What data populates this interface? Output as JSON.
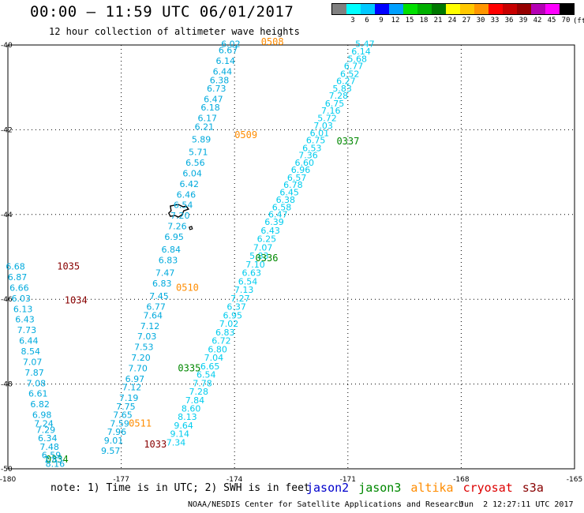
{
  "header": {
    "title": "00:00 – 11:59 UTC 06/01/2017",
    "subtitle": "12 hour collection of altimeter wave heights"
  },
  "color_legend": {
    "unit": "(ft)",
    "boxes": [
      {
        "label": "",
        "color": "#808080"
      },
      {
        "label": "3",
        "color": "#00ffff"
      },
      {
        "label": "6",
        "color": "#00c8ff"
      },
      {
        "label": "9",
        "color": "#0000ff"
      },
      {
        "label": "12",
        "color": "#00a0ff"
      },
      {
        "label": "15",
        "color": "#00e000"
      },
      {
        "label": "18",
        "color": "#00b000"
      },
      {
        "label": "21",
        "color": "#007800"
      },
      {
        "label": "24",
        "color": "#ffff00"
      },
      {
        "label": "27",
        "color": "#ffc800"
      },
      {
        "label": "30",
        "color": "#ff9600"
      },
      {
        "label": "33",
        "color": "#ff0000"
      },
      {
        "label": "36",
        "color": "#c80000"
      },
      {
        "label": "39",
        "color": "#960000"
      },
      {
        "label": "42",
        "color": "#b400b4"
      },
      {
        "label": "45",
        "color": "#ff00ff"
      },
      {
        "label": "70",
        "color": "#000000"
      }
    ]
  },
  "footer": {
    "note": "note: 1) Time is in UTC; 2) SWH is in feet",
    "missions": [
      {
        "name": "jason2",
        "color": "#0000cc"
      },
      {
        "name": "jason3",
        "color": "#008800"
      },
      {
        "name": "altika",
        "color": "#ff8c00"
      },
      {
        "name": "cryosat",
        "color": "#dd0000"
      },
      {
        "name": "s3a",
        "color": "#880000"
      }
    ],
    "credit": "NOAA/NESDIS Center for Satellite Applications and Research",
    "generated": "Jun  2 12:27:11 UTC 2017"
  },
  "chart_data": {
    "type": "scatter",
    "title": "00:00 – 11:59 UTC 06/01/2017",
    "subtitle": "12 hour collection of altimeter wave heights",
    "xlim": [
      -180,
      -165
    ],
    "ylim": [
      -50,
      -40
    ],
    "x_ticks": [
      -180,
      -177,
      -174,
      -171,
      -168,
      -165
    ],
    "y_ticks": [
      -40,
      -42,
      -44,
      -46,
      -48,
      -50
    ],
    "grid": "dotted",
    "value_color": "#00aadd",
    "series": [
      {
        "name": "altika",
        "label_color": "#ff8c00",
        "value_color": "#00aadd",
        "points": [
          {
            "lon": -174.1,
            "lat": -40.05,
            "swh": 6.02
          },
          {
            "lon": -174.17,
            "lat": -40.2,
            "swh": 6.67
          },
          {
            "lon": -174.24,
            "lat": -40.45,
            "swh": 6.14
          },
          {
            "lon": -174.32,
            "lat": -40.7,
            "swh": 6.44
          },
          {
            "lon": -174.4,
            "lat": -40.9,
            "swh": 6.38
          },
          {
            "lon": -174.48,
            "lat": -41.1,
            "swh": 6.73
          },
          {
            "lon": -174.56,
            "lat": -41.35,
            "swh": 6.47
          },
          {
            "lon": -174.64,
            "lat": -41.55,
            "swh": 6.18
          },
          {
            "lon": -174.72,
            "lat": -41.8,
            "swh": 6.17
          },
          {
            "lon": -174.8,
            "lat": -42.0,
            "swh": 6.21
          },
          {
            "lon": -174.88,
            "lat": -42.3,
            "swh": 5.89
          },
          {
            "lon": -174.96,
            "lat": -42.6,
            "swh": 5.71
          },
          {
            "lon": -175.04,
            "lat": -42.85,
            "swh": 6.56
          },
          {
            "lon": -175.12,
            "lat": -43.1,
            "swh": 6.04
          },
          {
            "lon": -175.2,
            "lat": -43.35,
            "swh": 6.42
          },
          {
            "lon": -175.28,
            "lat": -43.6,
            "swh": 6.46
          },
          {
            "lon": -175.36,
            "lat": -43.85,
            "swh": 6.54
          },
          {
            "lon": -175.44,
            "lat": -44.1,
            "swh": 7.2
          },
          {
            "lon": -175.52,
            "lat": -44.35,
            "swh": 7.26
          },
          {
            "lon": -175.6,
            "lat": -44.6,
            "swh": 6.95
          },
          {
            "lon": -175.68,
            "lat": -44.9,
            "swh": 6.84
          },
          {
            "lon": -175.76,
            "lat": -45.15,
            "swh": 6.83
          },
          {
            "lon": -175.84,
            "lat": -45.45,
            "swh": 7.47
          },
          {
            "lon": -175.92,
            "lat": -45.7,
            "swh": 6.83
          },
          {
            "lon": -176.0,
            "lat": -46.0,
            "swh": 7.45
          },
          {
            "lon": -176.08,
            "lat": -46.25,
            "swh": 6.77
          },
          {
            "lon": -176.16,
            "lat": -46.45,
            "swh": 7.64
          },
          {
            "lon": -176.24,
            "lat": -46.7,
            "swh": 7.12
          },
          {
            "lon": -176.32,
            "lat": -46.95,
            "swh": 7.03
          },
          {
            "lon": -176.4,
            "lat": -47.2,
            "swh": 7.53
          },
          {
            "lon": -176.48,
            "lat": -47.45,
            "swh": 7.2
          },
          {
            "lon": -176.56,
            "lat": -47.7,
            "swh": 7.7
          },
          {
            "lon": -176.64,
            "lat": -47.95,
            "swh": 6.97
          },
          {
            "lon": -176.72,
            "lat": -48.15,
            "swh": 7.12
          },
          {
            "lon": -176.8,
            "lat": -48.4,
            "swh": 7.19
          },
          {
            "lon": -176.88,
            "lat": -48.6,
            "swh": 7.75
          },
          {
            "lon": -176.96,
            "lat": -48.8,
            "swh": 7.65
          },
          {
            "lon": -177.04,
            "lat": -49.0,
            "swh": 7.59
          },
          {
            "lon": -177.12,
            "lat": -49.2,
            "swh": 7.96
          },
          {
            "lon": -177.2,
            "lat": -49.4,
            "swh": 9.01
          },
          {
            "lon": -177.28,
            "lat": -49.65,
            "swh": 9.57
          }
        ],
        "time_labels": [
          {
            "text": "0508",
            "lon": -173.3,
            "lat": -40.0
          },
          {
            "text": "0509",
            "lon": -174.0,
            "lat": -42.2
          },
          {
            "text": "0510",
            "lon": -175.55,
            "lat": -45.8
          },
          {
            "text": "0511",
            "lon": -176.8,
            "lat": -49.0
          }
        ]
      },
      {
        "name": "jason3",
        "label_color": "#008800",
        "value_color": "#00ccee",
        "points": [
          {
            "lon": -170.55,
            "lat": -40.05,
            "swh": 5.47
          },
          {
            "lon": -170.65,
            "lat": -40.22,
            "swh": 6.14
          },
          {
            "lon": -170.75,
            "lat": -40.4,
            "swh": 5.68
          },
          {
            "lon": -170.85,
            "lat": -40.57,
            "swh": 6.77
          },
          {
            "lon": -170.95,
            "lat": -40.75,
            "swh": 6.52
          },
          {
            "lon": -171.05,
            "lat": -40.92,
            "swh": 6.27
          },
          {
            "lon": -171.15,
            "lat": -41.1,
            "swh": 5.83
          },
          {
            "lon": -171.25,
            "lat": -41.27,
            "swh": 7.28
          },
          {
            "lon": -171.35,
            "lat": -41.45,
            "swh": 6.75
          },
          {
            "lon": -171.45,
            "lat": -41.62,
            "swh": 7.16
          },
          {
            "lon": -171.55,
            "lat": -41.8,
            "swh": 5.72
          },
          {
            "lon": -171.65,
            "lat": -41.97,
            "swh": 7.03
          },
          {
            "lon": -171.75,
            "lat": -42.15,
            "swh": 6.01
          },
          {
            "lon": -171.85,
            "lat": -42.32,
            "swh": 6.75
          },
          {
            "lon": -171.95,
            "lat": -42.5,
            "swh": 6.53
          },
          {
            "lon": -172.05,
            "lat": -42.67,
            "swh": 7.36
          },
          {
            "lon": -172.15,
            "lat": -42.85,
            "swh": 6.6
          },
          {
            "lon": -172.25,
            "lat": -43.02,
            "swh": 6.96
          },
          {
            "lon": -172.35,
            "lat": -43.2,
            "swh": 6.57
          },
          {
            "lon": -172.45,
            "lat": -43.37,
            "swh": 6.78
          },
          {
            "lon": -172.55,
            "lat": -43.55,
            "swh": 6.45
          },
          {
            "lon": -172.65,
            "lat": -43.72,
            "swh": 6.38
          },
          {
            "lon": -172.75,
            "lat": -43.9,
            "swh": 6.58
          },
          {
            "lon": -172.85,
            "lat": -44.07,
            "swh": 6.47
          },
          {
            "lon": -172.95,
            "lat": -44.25,
            "swh": 6.39
          },
          {
            "lon": -173.05,
            "lat": -44.45,
            "swh": 6.43
          },
          {
            "lon": -173.15,
            "lat": -44.65,
            "swh": 6.25
          },
          {
            "lon": -173.25,
            "lat": -44.85,
            "swh": 7.07
          },
          {
            "lon": -173.35,
            "lat": -45.05,
            "swh": 5.83
          },
          {
            "lon": -173.45,
            "lat": -45.25,
            "swh": 7.1
          },
          {
            "lon": -173.55,
            "lat": -45.45,
            "swh": 6.63
          },
          {
            "lon": -173.65,
            "lat": -45.65,
            "swh": 6.54
          },
          {
            "lon": -173.75,
            "lat": -45.85,
            "swh": 7.13
          },
          {
            "lon": -173.85,
            "lat": -46.05,
            "swh": 7.27
          },
          {
            "lon": -173.95,
            "lat": -46.25,
            "swh": 6.37
          },
          {
            "lon": -174.05,
            "lat": -46.45,
            "swh": 6.95
          },
          {
            "lon": -174.15,
            "lat": -46.65,
            "swh": 7.02
          },
          {
            "lon": -174.25,
            "lat": -46.85,
            "swh": 6.83
          },
          {
            "lon": -174.35,
            "lat": -47.05,
            "swh": 6.72
          },
          {
            "lon": -174.45,
            "lat": -47.25,
            "swh": 6.8
          },
          {
            "lon": -174.55,
            "lat": -47.45,
            "swh": 7.04
          },
          {
            "lon": -174.65,
            "lat": -47.65,
            "swh": 6.65
          },
          {
            "lon": -174.75,
            "lat": -47.85,
            "swh": 6.54
          },
          {
            "lon": -174.85,
            "lat": -48.05,
            "swh": 7.78
          },
          {
            "lon": -174.95,
            "lat": -48.25,
            "swh": 7.28
          },
          {
            "lon": -175.05,
            "lat": -48.45,
            "swh": 7.84
          },
          {
            "lon": -175.15,
            "lat": -48.65,
            "swh": 8.6
          },
          {
            "lon": -175.25,
            "lat": -48.85,
            "swh": 8.13
          },
          {
            "lon": -175.35,
            "lat": -49.05,
            "swh": 9.64
          },
          {
            "lon": -175.45,
            "lat": -49.25,
            "swh": 9.14
          },
          {
            "lon": -175.55,
            "lat": -49.45,
            "swh": 7.34
          }
        ],
        "time_labels": [
          {
            "text": "0337",
            "lon": -171.3,
            "lat": -42.35
          },
          {
            "text": "0336",
            "lon": -173.45,
            "lat": -45.1
          },
          {
            "text": "0335",
            "lon": -175.5,
            "lat": -47.7
          },
          {
            "text": "0334",
            "lon": -179.0,
            "lat": -49.85
          }
        ]
      },
      {
        "name": "s3a",
        "label_color": "#880000",
        "value_color": "#00aadd",
        "points": [
          {
            "lon": -179.8,
            "lat": -45.3,
            "swh": 6.68
          },
          {
            "lon": -179.75,
            "lat": -45.55,
            "swh": 6.87
          },
          {
            "lon": -179.7,
            "lat": -45.8,
            "swh": 6.66
          },
          {
            "lon": -179.65,
            "lat": -46.05,
            "swh": 6.03
          },
          {
            "lon": -179.6,
            "lat": -46.3,
            "swh": 6.13
          },
          {
            "lon": -179.55,
            "lat": -46.55,
            "swh": 6.43
          },
          {
            "lon": -179.5,
            "lat": -46.8,
            "swh": 7.73
          },
          {
            "lon": -179.45,
            "lat": -47.05,
            "swh": 6.44
          },
          {
            "lon": -179.4,
            "lat": -47.3,
            "swh": 8.54
          },
          {
            "lon": -179.35,
            "lat": -47.55,
            "swh": 7.07
          },
          {
            "lon": -179.3,
            "lat": -47.8,
            "swh": 7.87
          },
          {
            "lon": -179.25,
            "lat": -48.05,
            "swh": 7.08
          },
          {
            "lon": -179.2,
            "lat": -48.3,
            "swh": 6.61
          },
          {
            "lon": -179.15,
            "lat": -48.55,
            "swh": 6.82
          },
          {
            "lon": -179.1,
            "lat": -48.8,
            "swh": 6.98
          },
          {
            "lon": -179.05,
            "lat": -49.0,
            "swh": 7.24
          },
          {
            "lon": -179.0,
            "lat": -49.15,
            "swh": 7.29
          },
          {
            "lon": -178.95,
            "lat": -49.35,
            "swh": 6.34
          },
          {
            "lon": -178.9,
            "lat": -49.55,
            "swh": 7.48
          },
          {
            "lon": -178.85,
            "lat": -49.75,
            "swh": 6.59
          },
          {
            "lon": -178.8,
            "lat": -49.85,
            "swh": 7.83
          },
          {
            "lon": -178.75,
            "lat": -49.95,
            "swh": 8.16
          }
        ],
        "time_labels": [
          {
            "text": "1035",
            "lon": -178.7,
            "lat": -45.3
          },
          {
            "text": "1034",
            "lon": -178.5,
            "lat": -46.1
          },
          {
            "text": "1033",
            "lon": -176.4,
            "lat": -49.5
          }
        ]
      }
    ]
  }
}
